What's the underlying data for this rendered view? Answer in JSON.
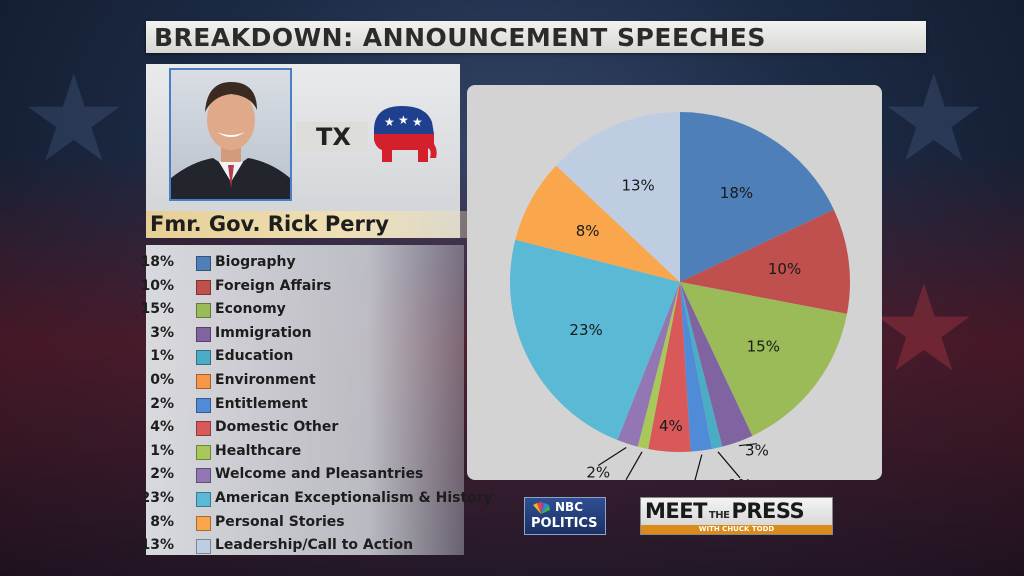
{
  "title": "BREAKDOWN: ANNOUNCEMENT SPEECHES",
  "candidate": {
    "name": "Fmr. Gov. Rick Perry",
    "state": "TX"
  },
  "logos": {
    "nbc_line1": "NBC",
    "nbc_line2": "POLITICS",
    "mtp_part1": "MEET",
    "mtp_the": "THE",
    "mtp_part2": "PRESS",
    "mtp_sub": "WITH CHUCK TODD"
  },
  "chart_data": {
    "type": "pie",
    "title": "BREAKDOWN: ANNOUNCEMENT SPEECHES",
    "categories": [
      "Biography",
      "Foreign Affairs",
      "Economy",
      "Immigration",
      "Education",
      "Environment",
      "Entitlement",
      "Domestic Other",
      "Healthcare",
      "Welcome and Pleasantries",
      "American Exceptionalism & History",
      "Personal Stories",
      "Leadership/Call to Action"
    ],
    "values": [
      18,
      10,
      15,
      3,
      1,
      0,
      2,
      4,
      1,
      2,
      23,
      8,
      13
    ],
    "labels": [
      "18%",
      "10%",
      "15%",
      "3%",
      "1%",
      "0%",
      "2%",
      "4%",
      "1%",
      "2%",
      "23%",
      "8%",
      "13%"
    ],
    "colors": [
      "#4e7fb9",
      "#c0504d",
      "#9bbb59",
      "#8064a2",
      "#4bacc6",
      "#f79646",
      "#4f8bd6",
      "#d9585a",
      "#a9c85a",
      "#9277b4",
      "#5ab9d5",
      "#f9a64c",
      "#bfcde3"
    ],
    "legend_position": "left"
  }
}
